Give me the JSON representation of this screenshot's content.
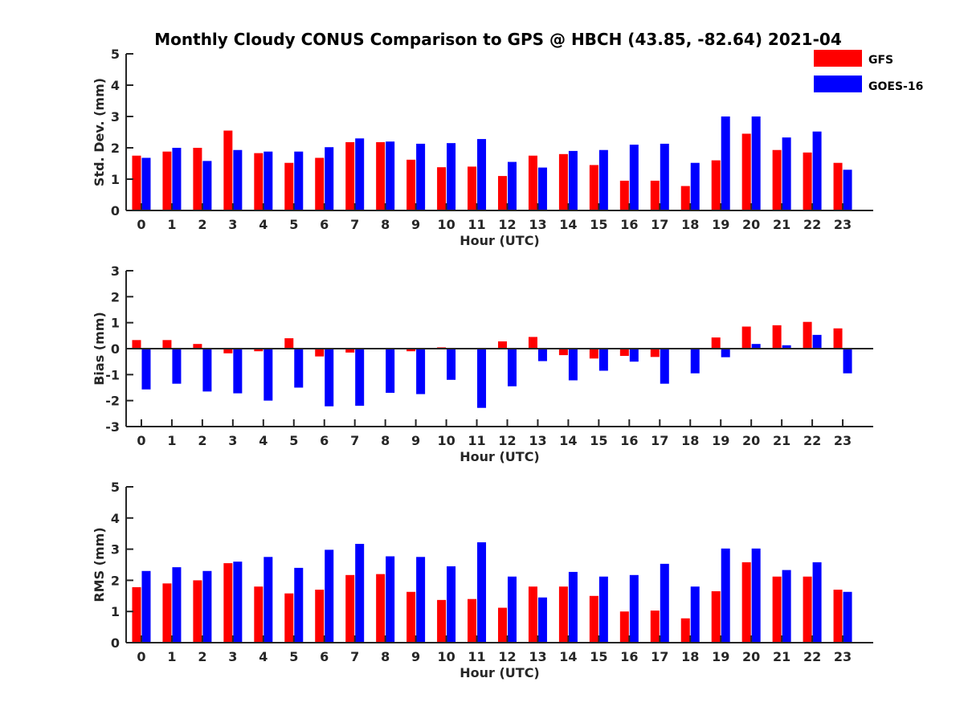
{
  "title": "Monthly Cloudy CONUS Comparison to GPS @ HBCH (43.85, -82.64) 2021-04",
  "legend": [
    {
      "name": "GFS",
      "color": "#ff0000"
    },
    {
      "name": "GOES-16",
      "color": "#0000ff"
    }
  ],
  "chart_data": [
    {
      "type": "bar",
      "xlabel": "Hour (UTC)",
      "ylabel": "Std. Dev. (mm)",
      "ylim": [
        0,
        5
      ],
      "yticks": [
        0,
        1,
        2,
        3,
        4,
        5
      ],
      "categories": [
        "0",
        "1",
        "2",
        "3",
        "4",
        "5",
        "6",
        "7",
        "8",
        "9",
        "10",
        "11",
        "12",
        "13",
        "14",
        "15",
        "16",
        "17",
        "18",
        "19",
        "20",
        "21",
        "22",
        "23"
      ],
      "series": [
        {
          "name": "GFS",
          "color": "#ff0000",
          "values": [
            1.75,
            1.88,
            2.0,
            2.55,
            1.83,
            1.52,
            1.68,
            2.18,
            2.18,
            1.62,
            1.38,
            1.4,
            1.1,
            1.75,
            1.8,
            1.45,
            0.95,
            0.95,
            0.78,
            1.6,
            2.45,
            1.93,
            1.85,
            1.52
          ]
        },
        {
          "name": "GOES-16",
          "color": "#0000ff",
          "values": [
            1.68,
            2.0,
            1.58,
            1.93,
            1.88,
            1.88,
            2.02,
            2.3,
            2.2,
            2.13,
            2.15,
            2.28,
            1.55,
            1.37,
            1.9,
            1.93,
            2.1,
            2.13,
            1.52,
            3.0,
            3.0,
            2.33,
            2.52,
            1.3
          ]
        }
      ]
    },
    {
      "type": "bar",
      "xlabel": "Hour (UTC)",
      "ylabel": "Bias (mm)",
      "ylim": [
        -3,
        3
      ],
      "yticks": [
        -3,
        -2,
        -1,
        0,
        1,
        2,
        3
      ],
      "categories": [
        "0",
        "1",
        "2",
        "3",
        "4",
        "5",
        "6",
        "7",
        "8",
        "9",
        "10",
        "11",
        "12",
        "13",
        "14",
        "15",
        "16",
        "17",
        "18",
        "19",
        "20",
        "21",
        "22",
        "23"
      ],
      "series": [
        {
          "name": "GFS",
          "color": "#ff0000",
          "values": [
            0.33,
            0.33,
            0.18,
            -0.18,
            -0.1,
            0.4,
            -0.3,
            -0.15,
            0.0,
            -0.1,
            0.05,
            0.03,
            0.28,
            0.45,
            -0.25,
            -0.38,
            -0.28,
            -0.32,
            0.0,
            0.43,
            0.85,
            0.9,
            1.03,
            0.78
          ]
        },
        {
          "name": "GOES-16",
          "color": "#0000ff",
          "values": [
            -1.57,
            -1.35,
            -1.65,
            -1.72,
            -2.0,
            -1.5,
            -2.22,
            -2.2,
            -1.7,
            -1.75,
            -1.2,
            -2.28,
            -1.45,
            -0.48,
            -1.22,
            -0.85,
            -0.5,
            -1.35,
            -0.95,
            -0.33,
            0.18,
            0.13,
            0.53,
            -0.95
          ]
        }
      ]
    },
    {
      "type": "bar",
      "xlabel": "Hour (UTC)",
      "ylabel": "RMS (mm)",
      "ylim": [
        0,
        5
      ],
      "yticks": [
        0,
        1,
        2,
        3,
        4,
        5
      ],
      "categories": [
        "0",
        "1",
        "2",
        "3",
        "4",
        "5",
        "6",
        "7",
        "8",
        "9",
        "10",
        "11",
        "12",
        "13",
        "14",
        "15",
        "16",
        "17",
        "18",
        "19",
        "20",
        "21",
        "22",
        "23"
      ],
      "series": [
        {
          "name": "GFS",
          "color": "#ff0000",
          "values": [
            1.78,
            1.9,
            2.0,
            2.55,
            1.8,
            1.58,
            1.7,
            2.17,
            2.2,
            1.63,
            1.37,
            1.4,
            1.12,
            1.8,
            1.8,
            1.5,
            1.0,
            1.03,
            0.78,
            1.65,
            2.58,
            2.12,
            2.12,
            1.7
          ]
        },
        {
          "name": "GOES-16",
          "color": "#0000ff",
          "values": [
            2.3,
            2.42,
            2.3,
            2.6,
            2.75,
            2.4,
            2.98,
            3.17,
            2.77,
            2.75,
            2.45,
            3.22,
            2.12,
            1.45,
            2.27,
            2.12,
            2.17,
            2.53,
            1.8,
            3.02,
            3.02,
            2.33,
            2.58,
            1.63
          ]
        }
      ]
    }
  ]
}
